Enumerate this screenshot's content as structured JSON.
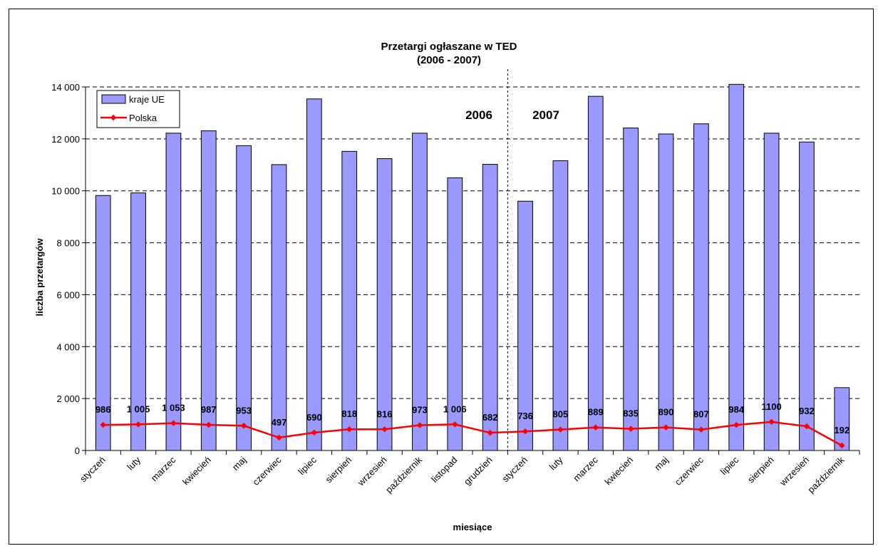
{
  "chart_data": {
    "type": "bar",
    "title": "Przetargi ogłaszane w TED",
    "subtitle": "(2006 - 2007)",
    "xlabel": "miesiące",
    "ylabel": "liczba przetargów",
    "ylim": [
      0,
      14000
    ],
    "yticks": [
      0,
      2000,
      4000,
      6000,
      8000,
      10000,
      12000,
      14000
    ],
    "ytick_labels": [
      "0",
      "2 000",
      "4 000",
      "6 000",
      "8 000",
      "10 000",
      "12 000",
      "14 000"
    ],
    "grid": true,
    "legend_position": "top-left",
    "categories": [
      "styczeń",
      "luty",
      "marzec",
      "kwiecień",
      "maj",
      "czerwiec",
      "lipiec",
      "sierpień",
      "wrzesień",
      "październik",
      "listopad",
      "grudzień",
      "styczeń",
      "luty",
      "marzec",
      "kwiecień",
      "maj",
      "czerwiec",
      "lipiec",
      "sierpień",
      "wrzesień",
      "październik"
    ],
    "year_labels": [
      "2006",
      "2007"
    ],
    "series": [
      {
        "name": "kraje UE",
        "type": "bar",
        "color": "#9999ff",
        "values": [
          9820,
          9920,
          12220,
          12310,
          11740,
          11010,
          13540,
          11520,
          11240,
          12220,
          10500,
          11020,
          9600,
          11160,
          13640,
          12420,
          12190,
          12580,
          14100,
          12220,
          11880,
          2420
        ]
      },
      {
        "name": "Polska",
        "type": "line",
        "color": "#ff0000",
        "values": [
          986,
          1005,
          1053,
          987,
          953,
          497,
          690,
          818,
          816,
          973,
          1006,
          682,
          736,
          805,
          889,
          835,
          890,
          807,
          984,
          1100,
          932,
          192
        ],
        "data_labels": [
          "986",
          "1 005",
          "1 053",
          "987",
          "953",
          "497",
          "690",
          "818",
          "816",
          "973",
          "1 006",
          "682",
          "736",
          "805",
          "889",
          "835",
          "890",
          "807",
          "984",
          "1100",
          "932",
          "192"
        ]
      }
    ]
  }
}
